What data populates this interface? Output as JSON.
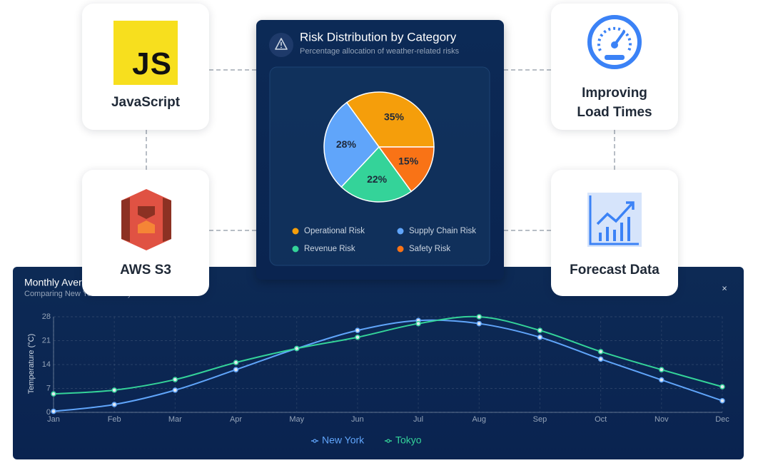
{
  "cards": [
    {
      "label": "JavaScript",
      "icon_text": "JS"
    },
    {
      "label": "AWS S3"
    },
    {
      "label": "Improving Load Times"
    },
    {
      "label": "Forecast Data"
    }
  ],
  "chart_data": [
    {
      "type": "pie",
      "title": "Risk Distribution by Category",
      "subtitle": "Percentage allocation of weather-related risks",
      "categories": [
        "Operational Risk",
        "Supply Chain Risk",
        "Revenue Risk",
        "Safety Risk"
      ],
      "values": [
        35,
        28,
        22,
        15
      ],
      "value_labels": [
        "35%",
        "28%",
        "22%",
        "15%"
      ],
      "colors": [
        "#f59e0b",
        "#60a5fa",
        "#34d399",
        "#f97316"
      ]
    },
    {
      "type": "line",
      "title": "Monthly Average Temperature",
      "subtitle": "Comparing New York and Tokyo",
      "close_button": "×",
      "categories": [
        "Jan",
        "Feb",
        "Mar",
        "Apr",
        "May",
        "Jun",
        "Jul",
        "Aug",
        "Sep",
        "Oct",
        "Nov",
        "Dec"
      ],
      "series": [
        {
          "name": "New York",
          "color": "#60a5fa",
          "values": [
            0.3,
            2.3,
            6.5,
            12.5,
            18.7,
            24,
            26.9,
            26,
            22,
            15.6,
            9.5,
            3.4
          ]
        },
        {
          "name": "Tokyo",
          "color": "#34d399",
          "values": [
            5.4,
            6.5,
            9.6,
            14.6,
            18.7,
            22,
            26,
            28,
            24,
            17.8,
            12.5,
            7.5
          ]
        }
      ],
      "ylabel": "Temperature (°C)",
      "ylim": [
        0,
        28
      ],
      "yticks": [
        0,
        7,
        14,
        21,
        28
      ],
      "grid": true
    }
  ]
}
